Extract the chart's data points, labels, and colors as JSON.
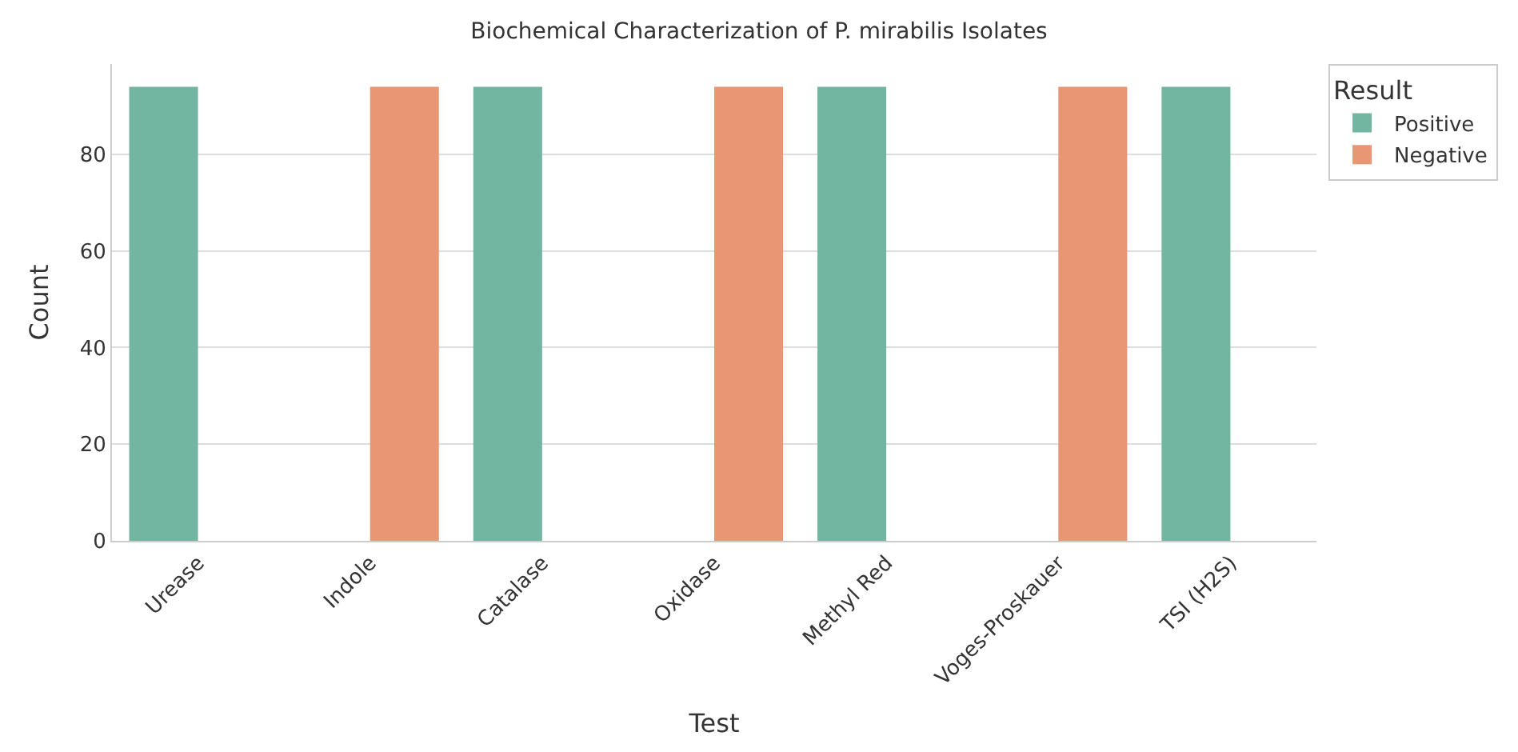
{
  "chart_data": {
    "type": "bar",
    "title": "Biochemical Characterization of P. mirabilis Isolates",
    "xlabel": "Test",
    "ylabel": "Count",
    "legend_title": "Result",
    "categories": [
      "Urease",
      "Indole",
      "Catalase",
      "Oxidase",
      "Methyl Red",
      "Voges-Proskauer",
      "TSI (H2S)"
    ],
    "series": [
      {
        "name": "Positive",
        "color": "#72b6a1",
        "values": [
          94,
          null,
          94,
          null,
          94,
          null,
          94
        ]
      },
      {
        "name": "Negative",
        "color": "#e99675",
        "values": [
          null,
          94,
          null,
          94,
          null,
          94,
          null
        ]
      }
    ],
    "ylim": [
      0,
      98.7
    ],
    "yticks": [
      0,
      20,
      40,
      60,
      80
    ],
    "grid": "y",
    "legend": "top right"
  }
}
